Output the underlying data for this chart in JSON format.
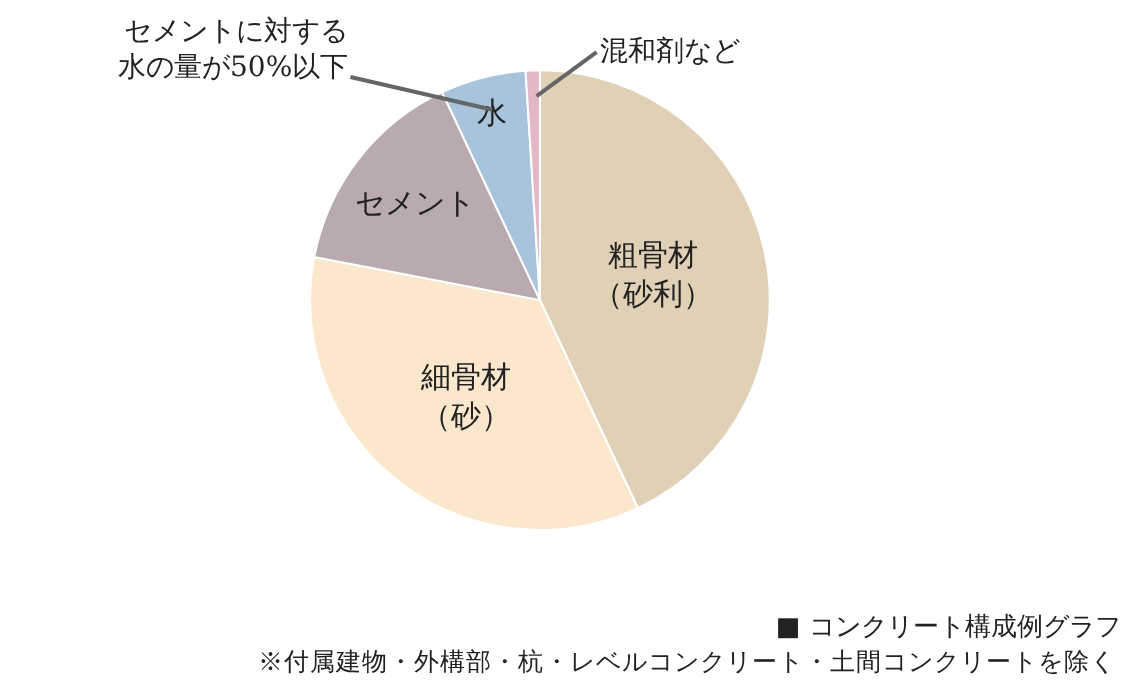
{
  "chart_data": {
    "type": "pie",
    "title": "■ コンクリート構成例グラフ",
    "categories": [
      "粗骨材（砂利）",
      "細骨材（砂）",
      "セメント",
      "水",
      "混和剤など"
    ],
    "values": [
      43,
      35,
      15,
      6,
      1
    ],
    "colors": [
      "#e0d0b5",
      "#fbe8cc",
      "#b8aaae",
      "#a8c4dc",
      "#e2b8c8"
    ],
    "annotations": [
      "セメントに対する水の量が50%以下",
      "※付属建物・外構部・杭・レベルコンクリート・土間コンクリートを除く"
    ],
    "legend": false
  }
}
